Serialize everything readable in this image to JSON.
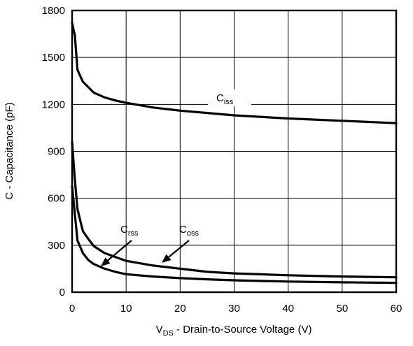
{
  "chart_data": {
    "type": "line",
    "ylabel": "C - Capacitance (pF)",
    "xlabel_prefix": "V",
    "xlabel_sub": "DS",
    "xlabel_rest": " - Drain-to-Source Voltage (V)",
    "xlim": [
      0,
      60
    ],
    "ylim": [
      0,
      1800
    ],
    "x_ticks": [
      0,
      10,
      20,
      30,
      40,
      50,
      60
    ],
    "y_ticks": [
      0,
      300,
      600,
      900,
      1200,
      1500,
      1800
    ],
    "grid": true,
    "series": [
      {
        "name": "Ciss",
        "label_main": "C",
        "label_sub": "iss",
        "points": [
          [
            0,
            1720
          ],
          [
            0.5,
            1640
          ],
          [
            1,
            1420
          ],
          [
            2,
            1345
          ],
          [
            3,
            1310
          ],
          [
            4,
            1275
          ],
          [
            6,
            1245
          ],
          [
            8,
            1225
          ],
          [
            10,
            1210
          ],
          [
            15,
            1180
          ],
          [
            20,
            1160
          ],
          [
            25,
            1145
          ],
          [
            30,
            1130
          ],
          [
            40,
            1110
          ],
          [
            50,
            1095
          ],
          [
            60,
            1080
          ]
        ]
      },
      {
        "name": "Coss",
        "label_main": "C",
        "label_sub": "oss",
        "points": [
          [
            0,
            960
          ],
          [
            0.5,
            720
          ],
          [
            1,
            530
          ],
          [
            2,
            390
          ],
          [
            3,
            340
          ],
          [
            4,
            295
          ],
          [
            6,
            250
          ],
          [
            8,
            225
          ],
          [
            10,
            200
          ],
          [
            15,
            170
          ],
          [
            20,
            150
          ],
          [
            25,
            130
          ],
          [
            30,
            120
          ],
          [
            40,
            108
          ],
          [
            50,
            100
          ],
          [
            60,
            95
          ]
        ]
      },
      {
        "name": "Crss",
        "label_main": "C",
        "label_sub": "rss",
        "points": [
          [
            0,
            680
          ],
          [
            0.5,
            500
          ],
          [
            1,
            330
          ],
          [
            2,
            250
          ],
          [
            3,
            205
          ],
          [
            4,
            180
          ],
          [
            6,
            150
          ],
          [
            8,
            130
          ],
          [
            10,
            115
          ],
          [
            15,
            100
          ],
          [
            20,
            90
          ],
          [
            25,
            82
          ],
          [
            30,
            76
          ],
          [
            40,
            68
          ],
          [
            50,
            63
          ],
          [
            60,
            60
          ]
        ]
      }
    ]
  }
}
